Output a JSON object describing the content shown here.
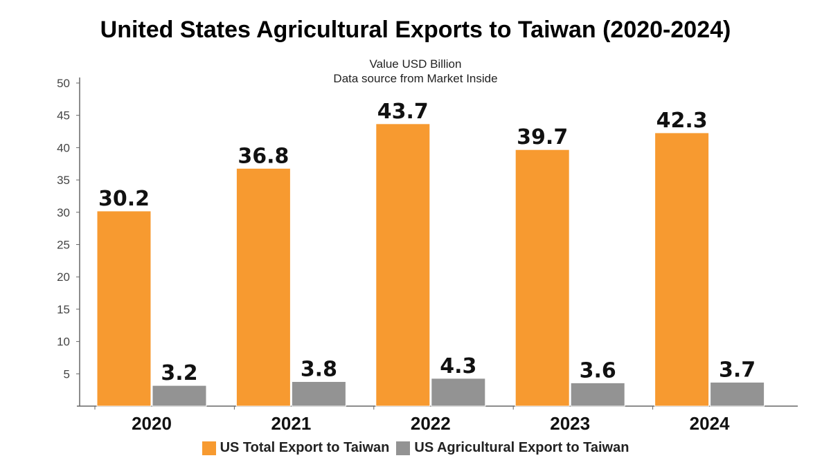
{
  "chart_data": {
    "type": "bar",
    "title": "United States Agricultural Exports to Taiwan (2020-2024)",
    "subtitle_lines": [
      "Value USD Billion",
      "Data source from Market Inside"
    ],
    "categories": [
      "2020",
      "2021",
      "2022",
      "2023",
      "2024"
    ],
    "series": [
      {
        "name": "US Total Export to Taiwan",
        "color": "#F79A30",
        "values": [
          30.2,
          36.8,
          43.7,
          39.7,
          42.3
        ]
      },
      {
        "name": "US Agricultural Export to Taiwan",
        "color": "#939393",
        "values": [
          3.2,
          3.8,
          4.3,
          3.6,
          3.7
        ]
      }
    ],
    "y_ticks": [
      5,
      10,
      15,
      20,
      25,
      30,
      35,
      40,
      45,
      50
    ],
    "ylim": [
      0,
      50
    ],
    "grid": false,
    "legend_position": "bottom"
  }
}
